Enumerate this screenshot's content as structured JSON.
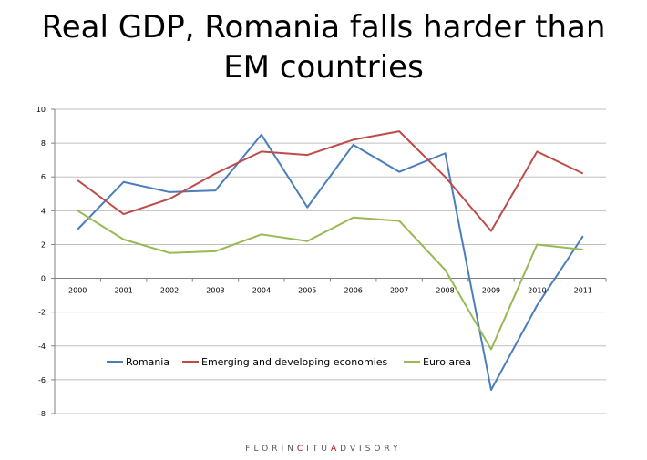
{
  "title": {
    "line1": "Real GDP, Romania falls harder than",
    "line2": "EM countries"
  },
  "footer": {
    "parts": [
      {
        "text": "FLORIN",
        "accent": false
      },
      {
        "text": "C",
        "accent": true
      },
      {
        "text": "ITU",
        "accent": false
      },
      {
        "text": "A",
        "accent": true
      },
      {
        "text": "DVISORY",
        "accent": false
      }
    ]
  },
  "chart_data": {
    "type": "line",
    "title": "Real GDP, Romania falls harder than EM countries",
    "xlabel": "",
    "ylabel": "",
    "categories": [
      "2000",
      "2001",
      "2002",
      "2003",
      "2004",
      "2005",
      "2006",
      "2007",
      "2008",
      "2009",
      "2010",
      "2011"
    ],
    "ylim": [
      -8,
      10
    ],
    "yticks": [
      10,
      8,
      6,
      4,
      2,
      0,
      -2,
      -4,
      -6,
      -8
    ],
    "ytick_labels": [
      "10",
      "8",
      "6",
      "4",
      "2",
      "0",
      "-2",
      "-4",
      "-6",
      "-8"
    ],
    "grid": true,
    "legend_position": "lower-left",
    "series": [
      {
        "name": "Romania",
        "color": "#4a7ebb",
        "values": [
          2.9,
          5.7,
          5.1,
          5.2,
          8.5,
          4.2,
          7.9,
          6.3,
          7.4,
          -6.6,
          -1.6,
          2.5
        ]
      },
      {
        "name": "Emerging and developing economies",
        "color": "#be4b48",
        "values": [
          5.8,
          3.8,
          4.7,
          6.2,
          7.5,
          7.3,
          8.2,
          8.7,
          6.0,
          2.8,
          7.5,
          6.2
        ]
      },
      {
        "name": "Euro area",
        "color": "#98b954",
        "values": [
          4.0,
          2.3,
          1.5,
          1.6,
          2.6,
          2.2,
          3.6,
          3.4,
          0.5,
          -4.2,
          2.0,
          1.7
        ]
      }
    ]
  }
}
